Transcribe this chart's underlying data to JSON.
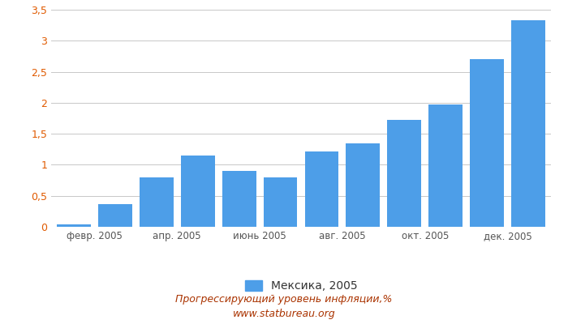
{
  "values": [
    0.04,
    0.36,
    0.8,
    1.15,
    0.9,
    0.8,
    1.21,
    1.34,
    1.73,
    1.97,
    2.7,
    3.33
  ],
  "xtick_labels": [
    "февр. 2005",
    "апр. 2005",
    "июнь 2005",
    "авг. 2005",
    "окт. 2005",
    "дек. 2005"
  ],
  "xtick_positions": [
    0.5,
    2.5,
    4.5,
    6.5,
    8.5,
    10.5
  ],
  "bar_color": "#4d9ee8",
  "ylim": [
    0,
    3.5
  ],
  "yticks": [
    0,
    0.5,
    1.0,
    1.5,
    2.0,
    2.5,
    3.0,
    3.5
  ],
  "ytick_labels": [
    "0",
    "0,5",
    "1",
    "1,5",
    "2",
    "2,5",
    "3",
    "3,5"
  ],
  "ytick_color": "#e05a00",
  "legend_label": "Мексика, 2005",
  "footer_line1": "Прогрессирующий уровень инфляции,%",
  "footer_line2": "www.statbureau.org",
  "background_color": "#ffffff",
  "grid_color": "#c8c8c8"
}
